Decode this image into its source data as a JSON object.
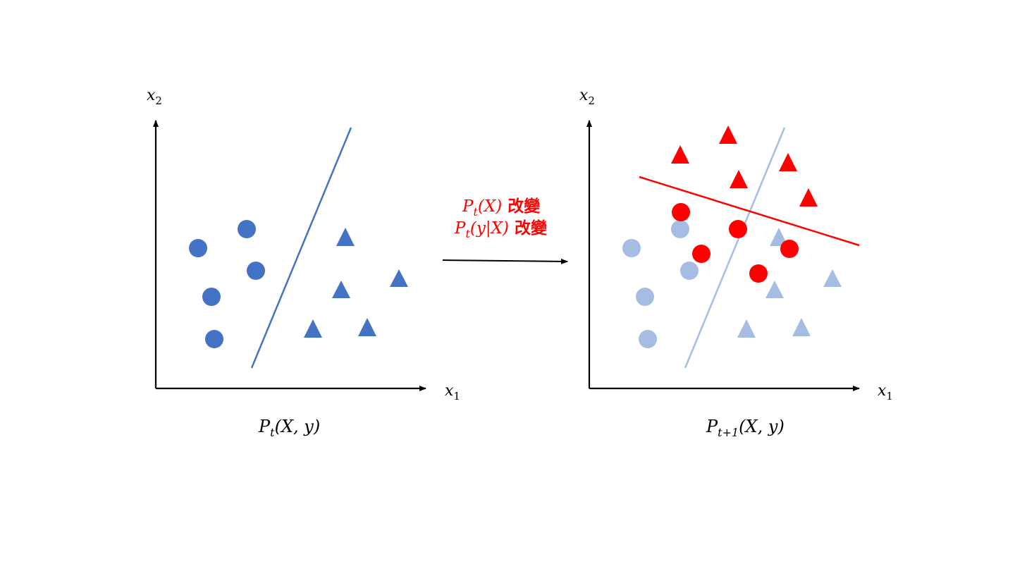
{
  "colors": {
    "blue": "#4472c4",
    "light_blue": "#a6bde3",
    "red": "#ff0000",
    "axis": "#000000"
  },
  "left_panel": {
    "y_axis_label": "x",
    "y_axis_sub": "2",
    "x_axis_label": "x",
    "x_axis_sub": "1",
    "caption": {
      "main": "P",
      "sub": "t",
      "rest": "(X, y)"
    }
  },
  "transition": {
    "line1_math": "P",
    "line1_sub": "t",
    "line1_rest": "(X)",
    "line1_text": "改變",
    "line2_math": "P",
    "line2_sub": "t",
    "line2_rest": "(y|X)",
    "line2_text": "改變"
  },
  "right_panel": {
    "y_axis_label": "x",
    "y_axis_sub": "2",
    "x_axis_label": "x",
    "x_axis_sub": "1",
    "caption": {
      "main": "P",
      "sub": "t+1",
      "rest": "(X, y)"
    }
  }
}
